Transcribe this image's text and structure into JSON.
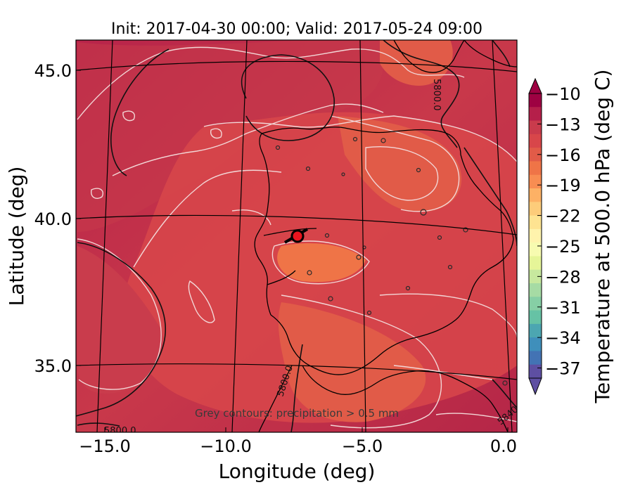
{
  "title": "Init: 2017-04-30 00:00; Valid: 2017-05-24 09:00",
  "x_axis": {
    "label": "Longitude (deg)",
    "ticks": [
      "−15.0",
      "−10.0",
      "−5.0",
      "0.0"
    ],
    "tick_values": [
      -15,
      -10,
      -5,
      0
    ]
  },
  "y_axis": {
    "label": "Latitude (deg)",
    "ticks": [
      "45.0",
      "40.0",
      "35.0"
    ],
    "tick_values": [
      45,
      40,
      35
    ]
  },
  "colorbar": {
    "label": "Temperature at 500.0 hPa (deg C)",
    "ticks": [
      "−10",
      "−13",
      "−16",
      "−19",
      "−22",
      "−25",
      "−28",
      "−31",
      "−34",
      "−37"
    ],
    "min": -38,
    "max": -10,
    "extend": "both",
    "colormap": "Spectral"
  },
  "contour_labels": [
    "5800.0",
    "5800.0",
    "5800.0",
    "5840"
  ],
  "note": "Grey contours: precipitation > 0.5 mm",
  "marker": {
    "color": "#e8141e",
    "edge": "#000000"
  }
}
